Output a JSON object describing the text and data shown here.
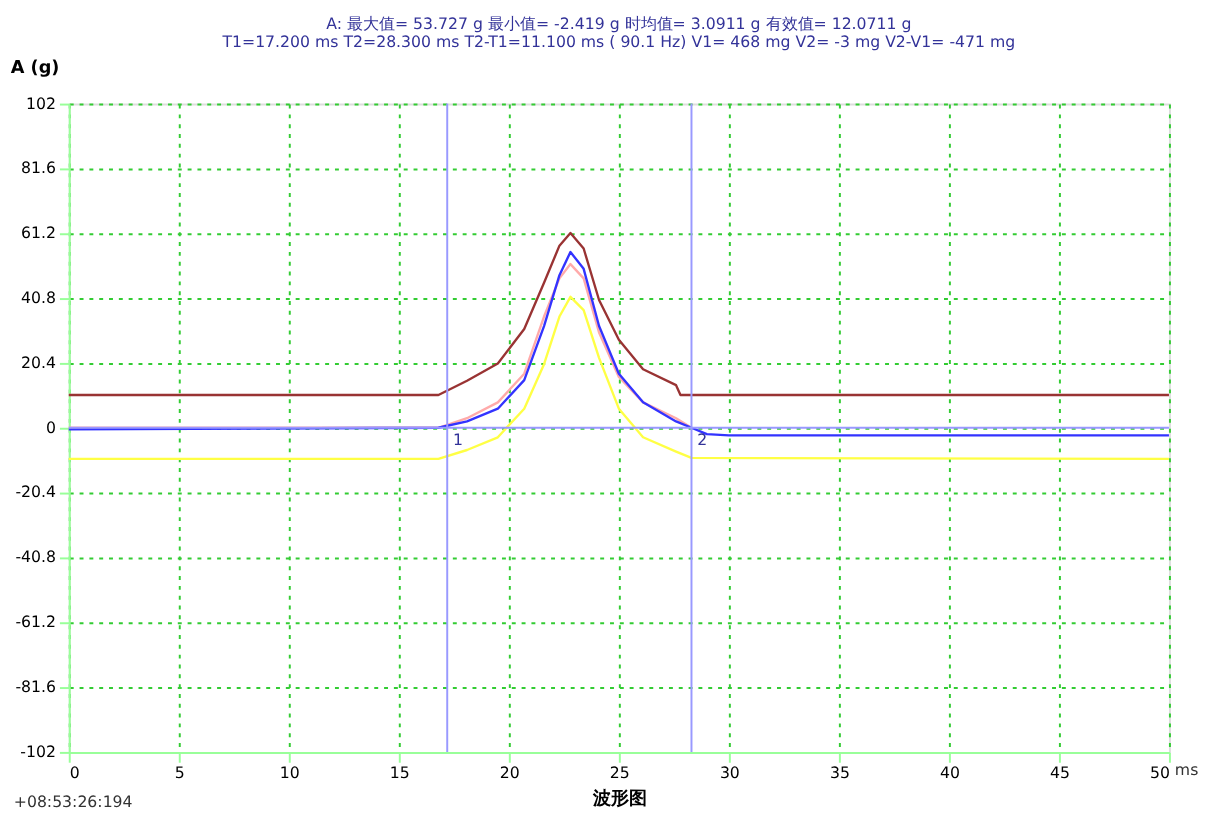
{
  "chart_data": {
    "type": "line",
    "ylabel": "A (g)",
    "xlabel": "波形图",
    "annotations": [
      "A: 最大值= 53.727 g 最小值= -2.419 g 时均值= 3.0911 g 有效值= 12.0711 g",
      "T1=17.200 ms T2=28.300 ms T2-T1=11.100 ms ( 90.1 Hz) V1= 468 mg V2= -3 mg V2-V1= -471 mg",
      "+08:53:26:194",
      "ms",
      {
        "text": "1",
        "x": 17.2,
        "y": 0
      },
      {
        "text": "2",
        "x": 28.3,
        "y": 0
      }
    ],
    "xlim": [
      0,
      50
    ],
    "xticks": [
      0,
      5,
      10,
      15,
      20,
      25,
      30,
      35,
      40,
      45,
      50
    ],
    "ylim": [
      -102,
      102
    ],
    "yticks": [
      -102,
      -81.6,
      -61.2,
      -40.8,
      -20.4,
      0,
      20.4,
      40.8,
      61.2,
      81.6,
      102
    ],
    "grid": true,
    "line_style": "solid",
    "marker": "none",
    "ref_lines": [
      {
        "axis": "x",
        "value": 17.2,
        "label": null,
        "color": "#9999ff"
      },
      {
        "axis": "x",
        "value": 28.3,
        "label": null,
        "color": "#9999ff"
      },
      {
        "axis": "y",
        "value": 0,
        "label": null,
        "color": "#9999ff"
      }
    ],
    "series": [
      {
        "color": "#ffaaaa",
        "x": [
          0,
          16.8,
          18.1,
          19.5,
          20.7,
          21.6,
          22.3,
          22.8,
          23.4,
          24.1,
          25.0,
          26.1,
          27.6,
          28.3
        ],
        "values": [
          0,
          0,
          3,
          8,
          17,
          35,
          47,
          51.5,
          47,
          30,
          16,
          8,
          3,
          0
        ]
      },
      {
        "color": "#993333",
        "x": [
          0,
          16.8,
          18.1,
          19.5,
          20.7,
          21.6,
          22.3,
          22.8,
          23.4,
          24.1,
          25.0,
          26.1,
          27.6,
          27.8,
          50
        ],
        "values": [
          10.3,
          10.3,
          14.8,
          20.2,
          31.1,
          45.6,
          57.3,
          61.3,
          56.4,
          40.2,
          27.7,
          18.4,
          13.4,
          10.3,
          10.3
        ]
      },
      {
        "color": "#ffff44",
        "x": [
          0,
          16.8,
          18.1,
          19.5,
          20.7,
          21.6,
          22.3,
          22.8,
          23.4,
          24.1,
          25.0,
          26.1,
          27.6,
          28.3,
          50
        ],
        "values": [
          -9.8,
          -9.8,
          -7,
          -3,
          6,
          20,
          35,
          41.2,
          37,
          22,
          6,
          -3,
          -7.5,
          -9.5,
          -9.8
        ]
      },
      {
        "color": "#3333ff",
        "x": [
          0,
          16.8,
          18.1,
          19.5,
          20.7,
          21.6,
          22.3,
          22.8,
          23.4,
          24.1,
          25.0,
          26.1,
          27.6,
          28.3,
          29,
          30,
          50
        ],
        "values": [
          -0.5,
          0,
          2,
          6,
          15,
          32,
          48,
          55.3,
          50,
          32,
          17,
          8,
          2,
          0,
          -2,
          -2.4,
          -2.4
        ]
      }
    ]
  }
}
